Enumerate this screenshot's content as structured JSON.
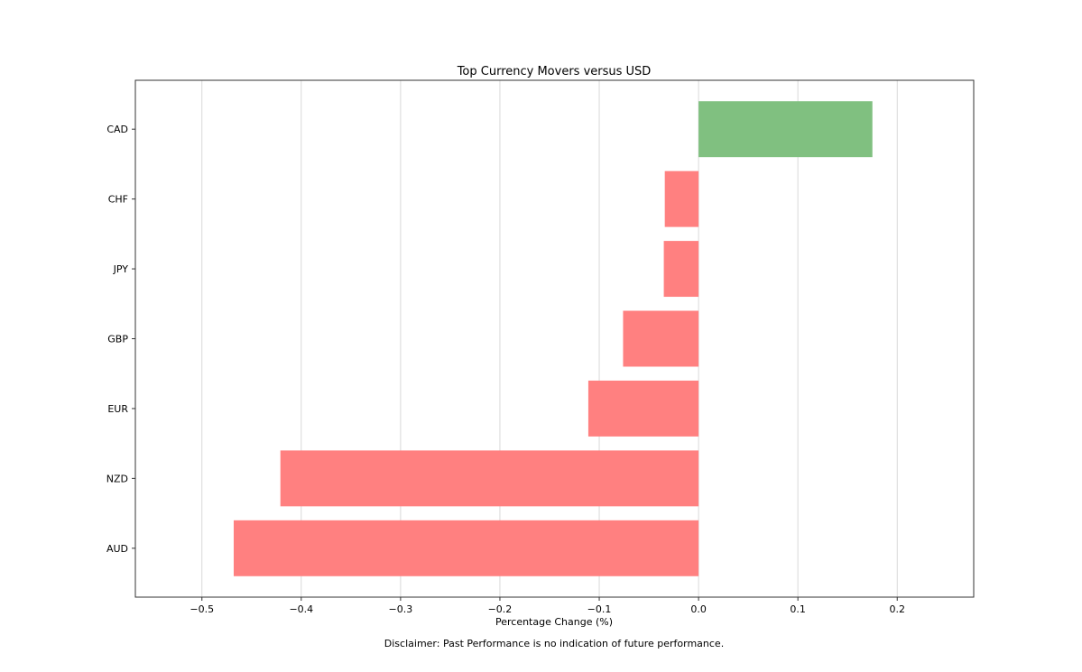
{
  "chart_data": {
    "type": "bar",
    "orientation": "horizontal",
    "title": "Top Currency Movers versus USD",
    "xlabel": "Percentage Change (%)",
    "ylabel": "",
    "footnote": "Disclaimer: Past Performance is no indication of future performance.",
    "categories": [
      "CAD",
      "CHF",
      "JPY",
      "GBP",
      "EUR",
      "NZD",
      "AUD"
    ],
    "values": [
      0.175,
      -0.034,
      -0.035,
      -0.076,
      -0.111,
      -0.421,
      -0.468
    ],
    "xlim": [
      -0.567,
      0.277
    ],
    "xticks": [
      -0.5,
      -0.4,
      -0.3,
      -0.2,
      -0.1,
      0.0,
      0.1,
      0.2
    ],
    "xtick_labels": [
      "−0.5",
      "−0.4",
      "−0.3",
      "−0.2",
      "−0.1",
      "0.0",
      "0.1",
      "0.2"
    ],
    "grid": "vertical",
    "legend": "none",
    "colors": {
      "positive": "#80c080",
      "negative": "#ff8080",
      "grid": "#d9d9d9",
      "frame": "#333333"
    }
  }
}
